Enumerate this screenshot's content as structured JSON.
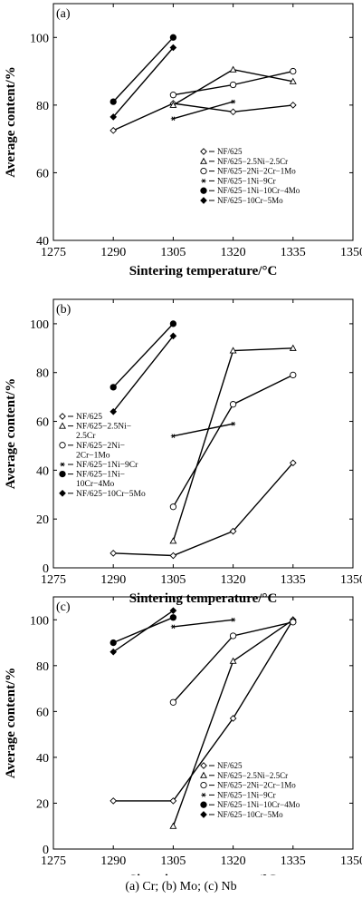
{
  "figure": {
    "caption": "(a)  Cr;  (b) Mo; (c) Nb"
  },
  "chart_data": [
    {
      "type": "line",
      "panel_label": "(a)",
      "xlabel": "Sintering temperature/°C",
      "ylabel": "Average content/%",
      "xlim": [
        1275,
        1350
      ],
      "ylim": [
        40,
        110
      ],
      "xticks": [
        1275,
        1290,
        1305,
        1320,
        1335,
        1350
      ],
      "yticks": [
        40,
        60,
        80,
        100
      ],
      "grid": false,
      "legend_position": "lower-right",
      "series": [
        {
          "name": "NF/625",
          "marker": "diamond-open",
          "points": [
            [
              1290,
              72.5
            ],
            [
              1305,
              80.5
            ],
            [
              1320,
              78
            ],
            [
              1335,
              80
            ]
          ]
        },
        {
          "name": "NF/625−2.5Ni−2.5Cr",
          "marker": "triangle-open",
          "points": [
            [
              1305,
              80
            ],
            [
              1320,
              90.5
            ],
            [
              1335,
              87
            ]
          ]
        },
        {
          "name": "NF/625−2Ni−2Cr−1Mo",
          "marker": "circle-open",
          "points": [
            [
              1305,
              83
            ],
            [
              1320,
              86
            ],
            [
              1335,
              90
            ]
          ]
        },
        {
          "name": "NF/625−1Ni−9Cr",
          "marker": "asterisk",
          "points": [
            [
              1305,
              76
            ],
            [
              1320,
              81
            ]
          ]
        },
        {
          "name": "NF/625−1Ni−10Cr−4Mo",
          "marker": "circle-filled",
          "points": [
            [
              1290,
              81
            ],
            [
              1305,
              100
            ]
          ]
        },
        {
          "name": "NF/625−10Cr−5Mo",
          "marker": "diamond-filled",
          "points": [
            [
              1290,
              76.5
            ],
            [
              1305,
              97
            ]
          ]
        }
      ]
    },
    {
      "type": "line",
      "panel_label": "(b)",
      "xlabel": "Sintering temperature/°C",
      "ylabel": "Average content/%",
      "xlim": [
        1275,
        1350
      ],
      "ylim": [
        0,
        110
      ],
      "xticks": [
        1275,
        1290,
        1305,
        1320,
        1335,
        1350
      ],
      "yticks": [
        0,
        20,
        40,
        60,
        80,
        100
      ],
      "grid": false,
      "legend_position": "left",
      "series": [
        {
          "name": "NF/625",
          "marker": "diamond-open",
          "points": [
            [
              1290,
              6
            ],
            [
              1305,
              5
            ],
            [
              1320,
              15
            ],
            [
              1335,
              43
            ]
          ]
        },
        {
          "name": "NF/625−2.5Ni−\n2.5Cr",
          "marker": "triangle-open",
          "points": [
            [
              1305,
              11
            ],
            [
              1320,
              89
            ],
            [
              1335,
              90
            ]
          ]
        },
        {
          "name": "NF/625−2Ni−\n2Cr−1Mo",
          "marker": "circle-open",
          "points": [
            [
              1305,
              25
            ],
            [
              1320,
              67
            ],
            [
              1335,
              79
            ]
          ]
        },
        {
          "name": "NF/625−1Ni−9Cr",
          "marker": "asterisk",
          "points": [
            [
              1305,
              54
            ],
            [
              1320,
              59
            ]
          ]
        },
        {
          "name": "NF/625−1Ni−\n10Cr−4Mo",
          "marker": "circle-filled",
          "points": [
            [
              1290,
              74
            ],
            [
              1305,
              100
            ]
          ]
        },
        {
          "name": "NF/625−10Cr−5Mo",
          "marker": "diamond-filled",
          "points": [
            [
              1290,
              64
            ],
            [
              1305,
              95
            ]
          ]
        }
      ]
    },
    {
      "type": "line",
      "panel_label": "(c)",
      "xlabel": "Sintering temperature/°C",
      "ylabel": "Average content/%",
      "xlim": [
        1275,
        1350
      ],
      "ylim": [
        0,
        110
      ],
      "xticks": [
        1275,
        1290,
        1305,
        1320,
        1335,
        1350
      ],
      "yticks": [
        0,
        20,
        40,
        60,
        80,
        100
      ],
      "grid": false,
      "legend_position": "lower-right",
      "series": [
        {
          "name": "NF/625",
          "marker": "diamond-open",
          "points": [
            [
              1290,
              21
            ],
            [
              1305,
              21
            ],
            [
              1320,
              57
            ],
            [
              1335,
              100
            ]
          ]
        },
        {
          "name": "NF/625−2.5Ni−2.5Cr",
          "marker": "triangle-open",
          "points": [
            [
              1305,
              10
            ],
            [
              1320,
              82
            ],
            [
              1335,
              100
            ]
          ]
        },
        {
          "name": "NF/625−2Ni−2Cr−1Mo",
          "marker": "circle-open",
          "points": [
            [
              1305,
              64
            ],
            [
              1320,
              93
            ],
            [
              1335,
              99
            ]
          ]
        },
        {
          "name": "NF/625−1Ni−9Cr",
          "marker": "asterisk",
          "points": [
            [
              1305,
              97
            ],
            [
              1320,
              100
            ]
          ]
        },
        {
          "name": "NF/625−1Ni−10Cr−4Mo",
          "marker": "circle-filled",
          "points": [
            [
              1290,
              90
            ],
            [
              1305,
              101
            ]
          ]
        },
        {
          "name": "NF/625−10Cr−5Mo",
          "marker": "diamond-filled",
          "points": [
            [
              1290,
              86
            ],
            [
              1305,
              104
            ]
          ]
        }
      ]
    }
  ]
}
